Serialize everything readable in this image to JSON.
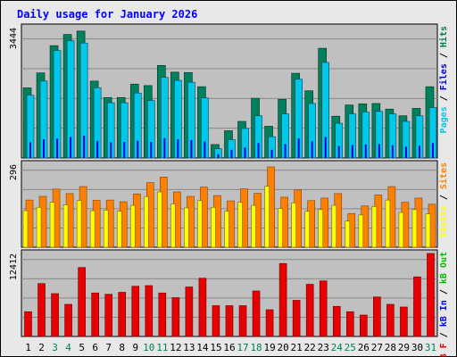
{
  "colors": {
    "background": "#e8e8e8",
    "panel": "#c0c0c0",
    "title": "#0000ff",
    "grid": "#888888",
    "visits": "#00805c",
    "pages": "#00c8e8",
    "files": "#0000e8",
    "hits": "#008040",
    "sites": "#ff8000",
    "visits_mid": "#ffff00",
    "kb_in": "#0000ff",
    "kb_out": "#00c000",
    "kbytes": "#e80000",
    "weekend_day": "#00805c",
    "weekday": "#000000"
  },
  "chart_data": {
    "type": "bar",
    "title": "Daily usage for January 2026",
    "x": [
      "1",
      "2",
      "3",
      "4",
      "5",
      "6",
      "7",
      "8",
      "9",
      "10",
      "11",
      "12",
      "13",
      "14",
      "15",
      "16",
      "17",
      "18",
      "19",
      "20",
      "21",
      "22",
      "23",
      "24",
      "25",
      "26",
      "27",
      "28",
      "29",
      "30",
      "31"
    ],
    "weekend_days": [
      "3",
      "4",
      "10",
      "11",
      "17",
      "18",
      "24",
      "25",
      "31"
    ],
    "panels": [
      {
        "id": "hits",
        "max_label": "3444",
        "ylim": [
          0,
          3444
        ],
        "legend": [
          {
            "text": "Pages",
            "color": "#00c8e8"
          },
          {
            "text": " / ",
            "color": "#000000"
          },
          {
            "text": "Files",
            "color": "#0000e8"
          },
          {
            "text": " / ",
            "color": "#000000"
          },
          {
            "text": "Hits",
            "color": "#008040"
          }
        ],
        "series": [
          {
            "name": "Hits",
            "values": [
              1880,
              2280,
              3010,
              3310,
              3400,
              2060,
              1620,
              1620,
              1980,
              1940,
              2480,
              2300,
              2290,
              1910,
              360,
              730,
              980,
              1600,
              850,
              1570,
              2270,
              1800,
              2940,
              1120,
              1420,
              1450,
              1460,
              1310,
              1130,
              1330,
              1910
            ]
          },
          {
            "name": "Pages",
            "values": [
              1680,
              2060,
              2880,
              3140,
              3080,
              1880,
              1480,
              1480,
              1740,
              1540,
              2160,
              2080,
              2030,
              1610,
              250,
              490,
              790,
              1130,
              570,
              1180,
              2110,
              1460,
              2560,
              930,
              1180,
              1230,
              1250,
              1180,
              980,
              1130,
              1350
            ]
          },
          {
            "name": "Files",
            "values": [
              420,
              500,
              520,
              560,
              600,
              460,
              420,
              430,
              460,
              430,
              530,
              500,
              480,
              440,
              100,
              220,
              280,
              400,
              220,
              370,
              520,
              450,
              560,
              320,
              350,
              360,
              370,
              340,
              300,
              330,
              400
            ]
          }
        ]
      },
      {
        "id": "sites",
        "max_label": "296",
        "ylim": [
          0,
          296
        ],
        "legend": [
          {
            "text": "Visits",
            "color": "#ffff00"
          },
          {
            "text": " / ",
            "color": "#000000"
          },
          {
            "text": "Sites",
            "color": "#ff8000"
          }
        ],
        "series": [
          {
            "name": "Sites",
            "values": [
              168,
              181,
              207,
              191,
              216,
              167,
              168,
              162,
              190,
              230,
              250,
              197,
              181,
              214,
              184,
              165,
              208,
              192,
              286,
              178,
              204,
              166,
              175,
              191,
              120,
              147,
              186,
              216,
              160,
              175,
              153
            ]
          },
          {
            "name": "Visits",
            "values": [
              130,
              142,
              160,
              151,
              166,
              130,
              132,
              128,
              149,
              180,
              197,
              154,
              140,
              166,
              142,
              128,
              160,
              149,
              217,
              138,
              158,
              128,
              134,
              149,
              93,
              115,
              145,
              168,
              124,
              134,
              119
            ]
          }
        ]
      },
      {
        "id": "kbytes",
        "max_label": "12412",
        "ylim": [
          0,
          12412
        ],
        "legend": [
          {
            "text": "kB F",
            "color": "#e80000"
          },
          {
            "text": " / ",
            "color": "#000000"
          },
          {
            "text": "kB In",
            "color": "#0000ff"
          },
          {
            "text": " / ",
            "color": "#000000"
          },
          {
            "text": "kB Out",
            "color": "#00c000"
          }
        ],
        "series": [
          {
            "name": "kB F",
            "values": [
              3700,
              7900,
              6400,
              4800,
              10300,
              6500,
              6300,
              6600,
              7500,
              7600,
              6500,
              5800,
              7400,
              8700,
              4600,
              4600,
              4600,
              6800,
              4000,
              10900,
              5400,
              7800,
              8300,
              4500,
              3700,
              3200,
              5900,
              4800,
              4400,
              8900,
              12400
            ]
          }
        ]
      }
    ]
  }
}
